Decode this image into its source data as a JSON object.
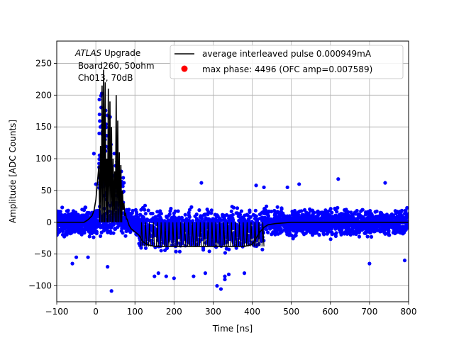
{
  "chart_data": {
    "type": "scatter",
    "title": "",
    "xlabel": "Time [ns]",
    "ylabel": "Amplitude [ADC Counts]",
    "xlim": [
      -100,
      800
    ],
    "ylim": [
      -125,
      285
    ],
    "xticks": [
      -100,
      0,
      100,
      200,
      300,
      400,
      500,
      600,
      700,
      800
    ],
    "yticks": [
      -100,
      -50,
      0,
      50,
      100,
      150,
      200,
      250
    ],
    "grid": true,
    "legend_position": "top-right",
    "annotation": {
      "line1_italic": "ATLAS",
      "line1_rest": " Upgrade",
      "line2": " Board260, 50ohm",
      "line3": " Ch013, 70dB"
    },
    "series": [
      {
        "name": "average interleaved pulse 0.000949mA",
        "kind": "line",
        "color": "#000000",
        "x": [
          -100,
          -30,
          -20,
          -10,
          -5,
          0,
          5,
          8,
          10,
          12,
          14,
          16,
          18,
          20,
          22,
          24,
          26,
          28,
          30,
          32,
          34,
          36,
          38,
          40,
          42,
          44,
          46,
          48,
          50,
          52,
          54,
          56,
          58,
          60,
          62,
          64,
          66,
          68,
          70,
          72,
          74,
          76,
          78,
          80,
          85,
          90,
          100,
          110,
          115,
          120,
          130,
          150,
          170,
          200,
          250,
          300,
          350,
          380,
          400,
          410,
          420,
          430,
          440,
          460,
          500,
          600,
          700,
          800
        ],
        "y": [
          0,
          0,
          4,
          10,
          18,
          35,
          70,
          90,
          0,
          120,
          0,
          215,
          0,
          240,
          0,
          220,
          0,
          100,
          0,
          210,
          0,
          190,
          0,
          150,
          0,
          100,
          0,
          80,
          0,
          200,
          0,
          160,
          0,
          110,
          0,
          90,
          0,
          50,
          20,
          30,
          10,
          15,
          5,
          5,
          -5,
          -10,
          -15,
          -20,
          -25,
          -30,
          -35,
          -38,
          -38,
          -38,
          -38,
          -38,
          -38,
          -38,
          -35,
          -25,
          -15,
          -8,
          -4,
          -2,
          0,
          0,
          0,
          0
        ]
      },
      {
        "name": "max phase: 4496 (OFC amp=0.007589)",
        "kind": "marker",
        "color": "#ff0000"
      },
      {
        "name": "",
        "kind": "scatter",
        "color": "#0000ff",
        "note_outliers_x": [
          -5,
          0,
          40,
          30,
          55,
          60,
          65,
          70,
          620,
          520,
          310,
          320,
          330,
          740,
          700,
          790,
          -60,
          -20,
          -50,
          200,
          150,
          160,
          180,
          250,
          280,
          330,
          340,
          380,
          270,
          490,
          430,
          410
        ],
        "note_outliers_y": [
          108,
          60,
          -108,
          -70,
          85,
          75,
          80,
          70,
          68,
          60,
          -100,
          -105,
          -85,
          62,
          -65,
          -60,
          -65,
          -55,
          -55,
          -88,
          -85,
          -80,
          -85,
          -85,
          -80,
          -90,
          -82,
          -80,
          62,
          55,
          55,
          58
        ]
      }
    ]
  }
}
